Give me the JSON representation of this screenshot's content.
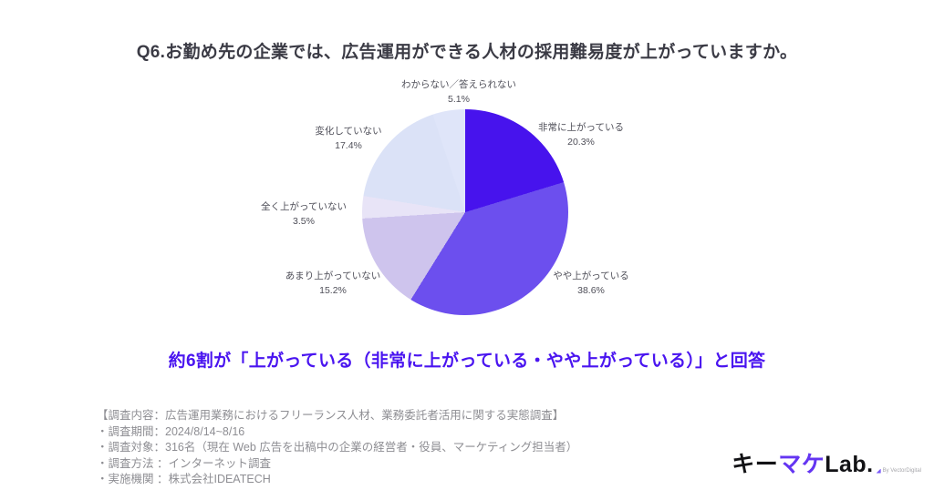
{
  "title": "Q6.お勤め先の企業では、広告運用ができる人材の採用難易度が上がっていますか。",
  "chart_data": {
    "type": "pie",
    "title": "Q6.お勤め先の企業では、広告運用ができる人材の採用難易度が上がっていますか。",
    "start_angle_deg": 0,
    "direction": "clockwise",
    "legend": "none",
    "slices": [
      {
        "label": "非常に上がっている",
        "value": 20.3,
        "pct_label": "20.3%",
        "color": "#4713ed"
      },
      {
        "label": "やや上がっている",
        "value": 38.6,
        "pct_label": "38.6%",
        "color": "#6c4fee"
      },
      {
        "label": "あまり上がっていない",
        "value": 15.2,
        "pct_label": "15.2%",
        "color": "#cec4ed"
      },
      {
        "label": "全く上がっていない",
        "value": 3.5,
        "pct_label": "3.5%",
        "color": "#e8e4f7"
      },
      {
        "label": "変化していない",
        "value": 17.4,
        "pct_label": "17.4%",
        "color": "#dbe2f7"
      },
      {
        "label": "わからない／答えられない",
        "value": 5.1,
        "pct_label": "5.1%",
        "color": "#dfe5f9"
      }
    ]
  },
  "callout": "約6割が「上がっている（非常に上がっている・やや上がっている）」と回答",
  "callout_color": "#4a15f0",
  "footer": {
    "lines": [
      "【調査内容：広告運用業務におけるフリーランス人材、業務委託者活用に関する実態調査】",
      "・調査期間：2024/8/14~8/16",
      "・調査対象：316名（現在 Web 広告を出稿中の企業の経営者・役員、マーケティング担当者）",
      "・調査方法 ：インターネット調査",
      "・実施機関 ：株式会社IDEATECH"
    ]
  },
  "logo": {
    "part1": "キー",
    "part2": "マケ",
    "part3": "Lab.",
    "byline": "By VectorDigital",
    "accent_color": "#6435f2"
  }
}
